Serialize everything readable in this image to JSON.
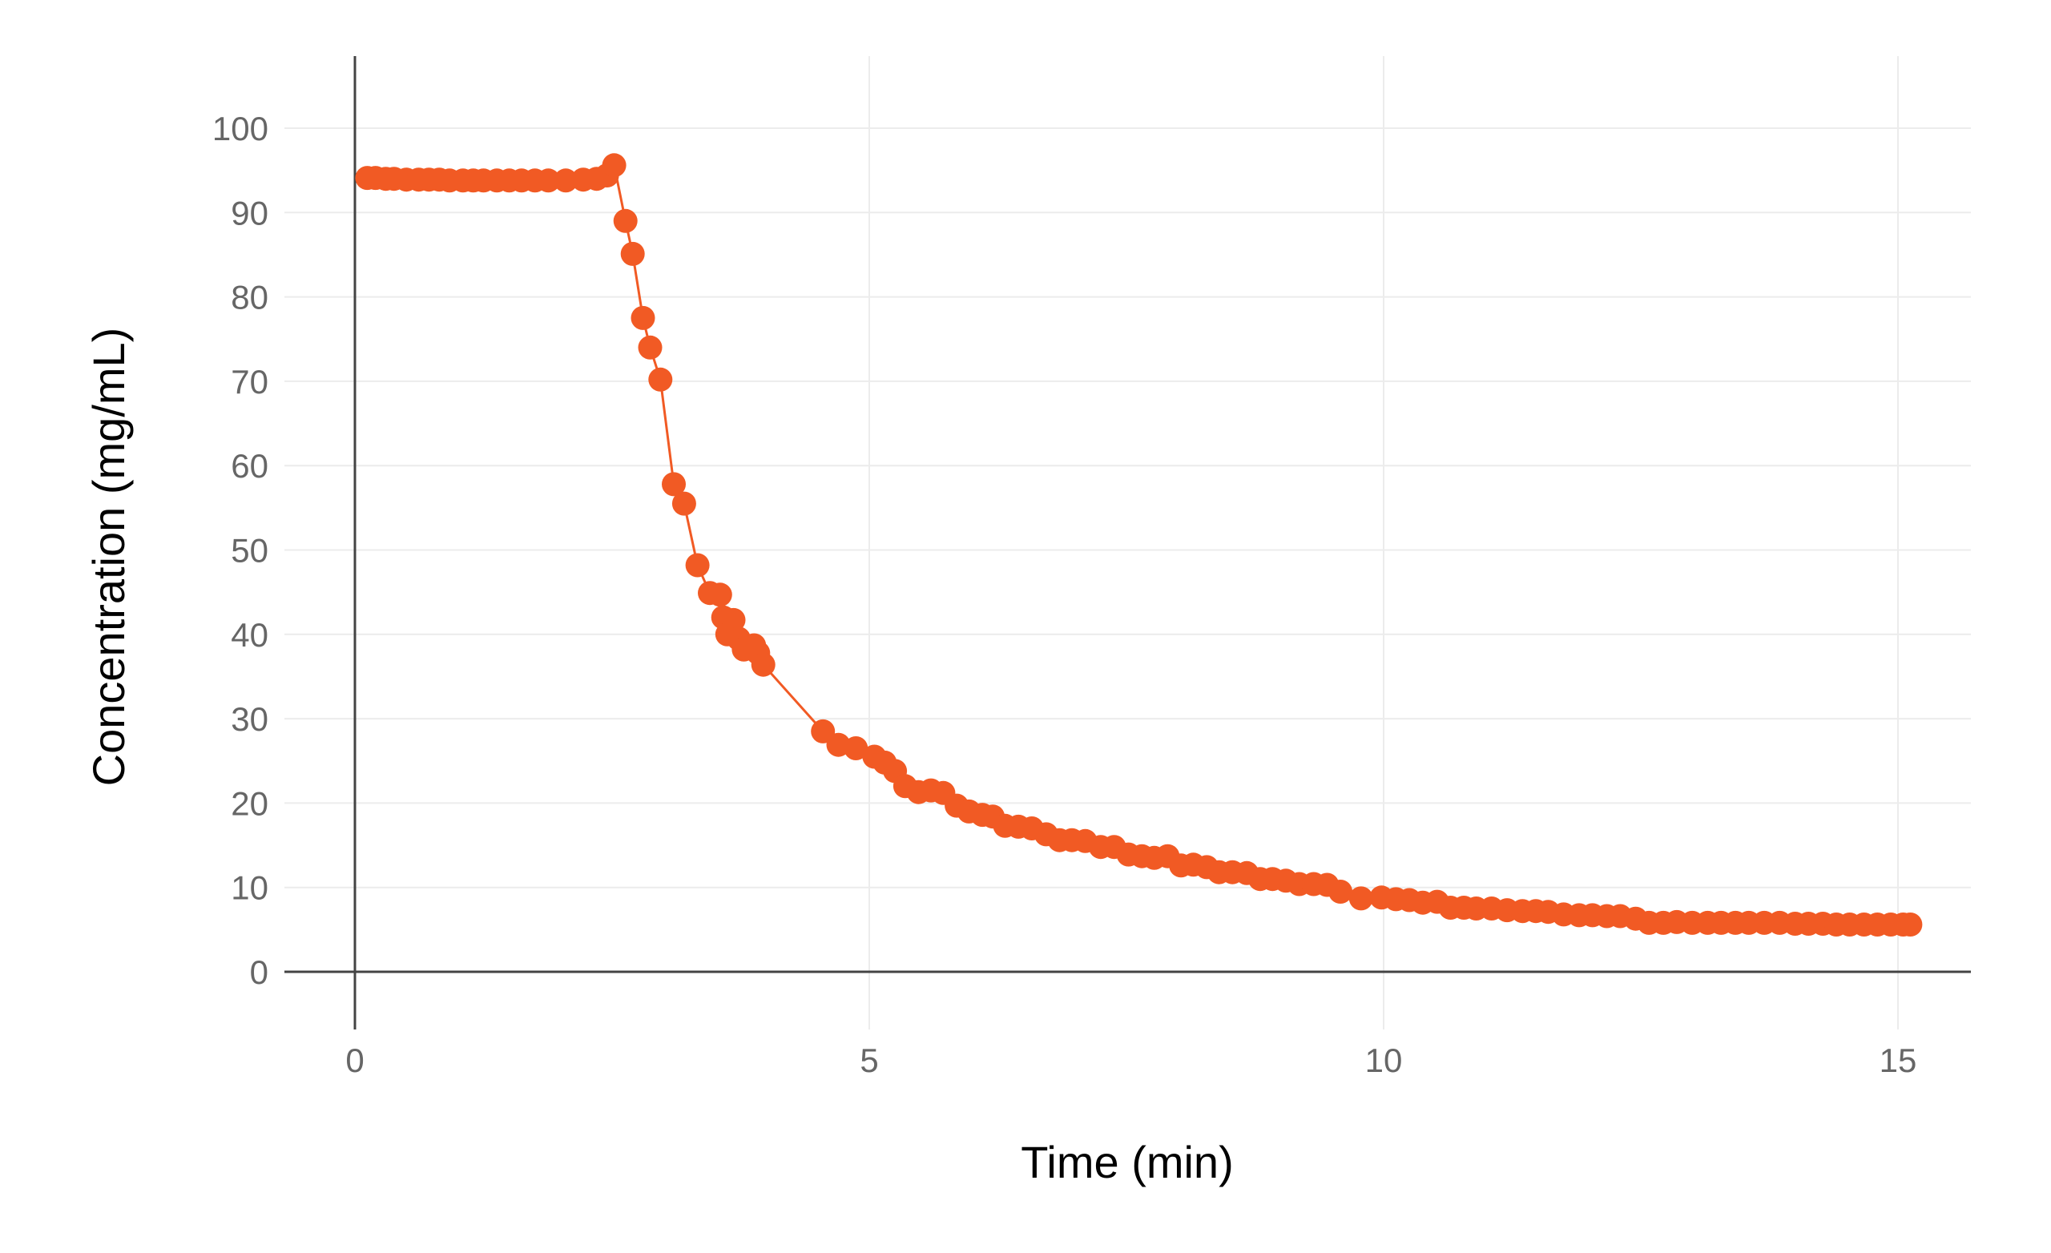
{
  "chart_data": {
    "type": "scatter",
    "xlabel": "Time (min)",
    "ylabel": "Concentration (mg/mL)",
    "xlim": [
      -0.7,
      15.7
    ],
    "ylim": [
      -6,
      108
    ],
    "x_ticks": [
      0,
      5,
      10,
      15
    ],
    "y_ticks": [
      0,
      10,
      20,
      30,
      40,
      50,
      60,
      70,
      80,
      90,
      100
    ],
    "grid": true,
    "legend": "none",
    "marker_color": "#f15a24",
    "line_color": "#f15a24",
    "series": [
      {
        "style": "points+line",
        "points": [
          [
            0.12,
            94.1
          ],
          [
            0.2,
            94.1
          ],
          [
            0.3,
            94.0
          ],
          [
            0.38,
            94.0
          ],
          [
            0.5,
            93.9
          ],
          [
            0.62,
            93.9
          ],
          [
            0.72,
            93.9
          ],
          [
            0.82,
            93.9
          ],
          [
            0.92,
            93.8
          ],
          [
            1.05,
            93.8
          ],
          [
            1.15,
            93.8
          ],
          [
            1.25,
            93.8
          ],
          [
            1.38,
            93.8
          ],
          [
            1.5,
            93.8
          ],
          [
            1.62,
            93.8
          ],
          [
            1.75,
            93.8
          ],
          [
            1.88,
            93.8
          ],
          [
            2.05,
            93.8
          ],
          [
            2.22,
            93.9
          ],
          [
            2.35,
            94.0
          ],
          [
            2.45,
            94.4
          ],
          [
            2.52,
            95.6
          ],
          [
            2.63,
            89.0
          ],
          [
            2.7,
            85.1
          ],
          [
            2.8,
            77.5
          ],
          [
            2.87,
            74.0
          ],
          [
            2.97,
            70.2
          ],
          [
            3.1,
            57.8
          ],
          [
            3.2,
            55.5
          ],
          [
            3.33,
            48.2
          ],
          [
            3.45,
            44.9
          ],
          [
            3.55,
            44.7
          ],
          [
            3.58,
            42.0
          ],
          [
            3.68,
            41.7
          ],
          [
            3.62,
            40.0
          ],
          [
            3.73,
            39.5
          ],
          [
            3.78,
            38.2
          ],
          [
            3.88,
            38.7
          ],
          [
            3.92,
            37.8
          ],
          [
            3.97,
            36.4
          ],
          [
            4.55,
            28.5
          ],
          [
            4.7,
            26.9
          ],
          [
            4.87,
            26.5
          ],
          [
            5.05,
            25.5
          ],
          [
            5.15,
            24.8
          ],
          [
            5.25,
            23.8
          ],
          [
            5.35,
            22.0
          ],
          [
            5.48,
            21.3
          ],
          [
            5.6,
            21.5
          ],
          [
            5.72,
            21.2
          ],
          [
            5.85,
            19.7
          ],
          [
            5.97,
            19.0
          ],
          [
            6.1,
            18.6
          ],
          [
            6.2,
            18.4
          ],
          [
            6.32,
            17.3
          ],
          [
            6.45,
            17.2
          ],
          [
            6.58,
            17.0
          ],
          [
            6.72,
            16.3
          ],
          [
            6.85,
            15.6
          ],
          [
            6.97,
            15.6
          ],
          [
            7.1,
            15.5
          ],
          [
            7.25,
            14.8
          ],
          [
            7.38,
            14.8
          ],
          [
            7.52,
            13.9
          ],
          [
            7.65,
            13.7
          ],
          [
            7.77,
            13.5
          ],
          [
            7.9,
            13.7
          ],
          [
            8.03,
            12.6
          ],
          [
            8.15,
            12.7
          ],
          [
            8.28,
            12.4
          ],
          [
            8.4,
            11.8
          ],
          [
            8.53,
            11.8
          ],
          [
            8.67,
            11.7
          ],
          [
            8.8,
            11.0
          ],
          [
            8.92,
            11.0
          ],
          [
            9.05,
            10.8
          ],
          [
            9.18,
            10.4
          ],
          [
            9.32,
            10.4
          ],
          [
            9.45,
            10.3
          ],
          [
            9.58,
            9.5
          ],
          [
            9.78,
            8.7
          ],
          [
            9.98,
            8.8
          ],
          [
            10.12,
            8.6
          ],
          [
            10.25,
            8.5
          ],
          [
            10.38,
            8.2
          ],
          [
            10.52,
            8.3
          ],
          [
            10.65,
            7.6
          ],
          [
            10.78,
            7.6
          ],
          [
            10.9,
            7.5
          ],
          [
            11.05,
            7.5
          ],
          [
            11.2,
            7.3
          ],
          [
            11.35,
            7.2
          ],
          [
            11.48,
            7.2
          ],
          [
            11.6,
            7.1
          ],
          [
            11.75,
            6.8
          ],
          [
            11.9,
            6.7
          ],
          [
            12.03,
            6.7
          ],
          [
            12.17,
            6.6
          ],
          [
            12.3,
            6.6
          ],
          [
            12.45,
            6.3
          ],
          [
            12.58,
            5.8
          ],
          [
            12.72,
            5.8
          ],
          [
            12.85,
            5.9
          ],
          [
            13.0,
            5.8
          ],
          [
            13.15,
            5.8
          ],
          [
            13.28,
            5.8
          ],
          [
            13.42,
            5.8
          ],
          [
            13.55,
            5.8
          ],
          [
            13.7,
            5.8
          ],
          [
            13.85,
            5.8
          ],
          [
            14.0,
            5.7
          ],
          [
            14.13,
            5.7
          ],
          [
            14.27,
            5.7
          ],
          [
            14.4,
            5.6
          ],
          [
            14.53,
            5.6
          ],
          [
            14.67,
            5.6
          ],
          [
            14.8,
            5.6
          ],
          [
            14.93,
            5.6
          ],
          [
            15.05,
            5.6
          ],
          [
            15.12,
            5.6
          ]
        ]
      }
    ]
  }
}
